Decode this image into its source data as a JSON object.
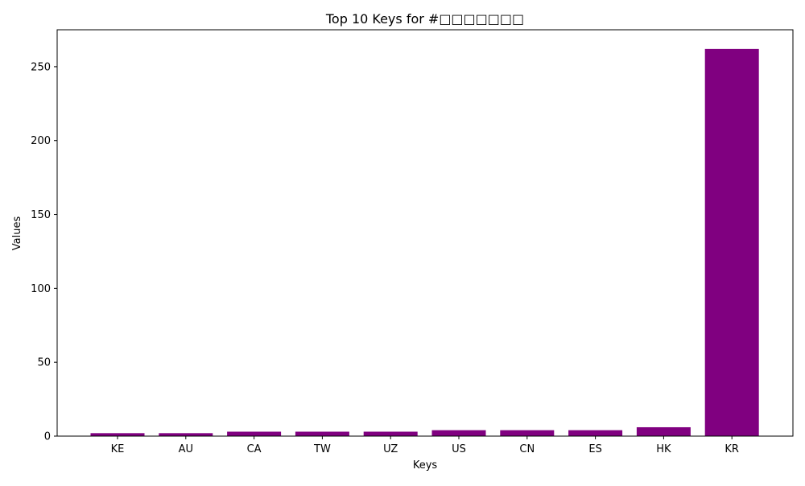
{
  "chart_data": {
    "type": "bar",
    "title": "Top 10 Keys for #□□□□□□□",
    "xlabel": "Keys",
    "ylabel": "Values",
    "categories": [
      "KE",
      "AU",
      "CA",
      "TW",
      "UZ",
      "US",
      "CN",
      "ES",
      "HK",
      "KR"
    ],
    "values": [
      2,
      2,
      3,
      3,
      3,
      4,
      4,
      4,
      6,
      262
    ],
    "ylim": [
      0,
      275
    ],
    "yticks": [
      0,
      50,
      100,
      150,
      200,
      250
    ],
    "bar_color": "#800080",
    "grid": false,
    "legend": "none"
  }
}
